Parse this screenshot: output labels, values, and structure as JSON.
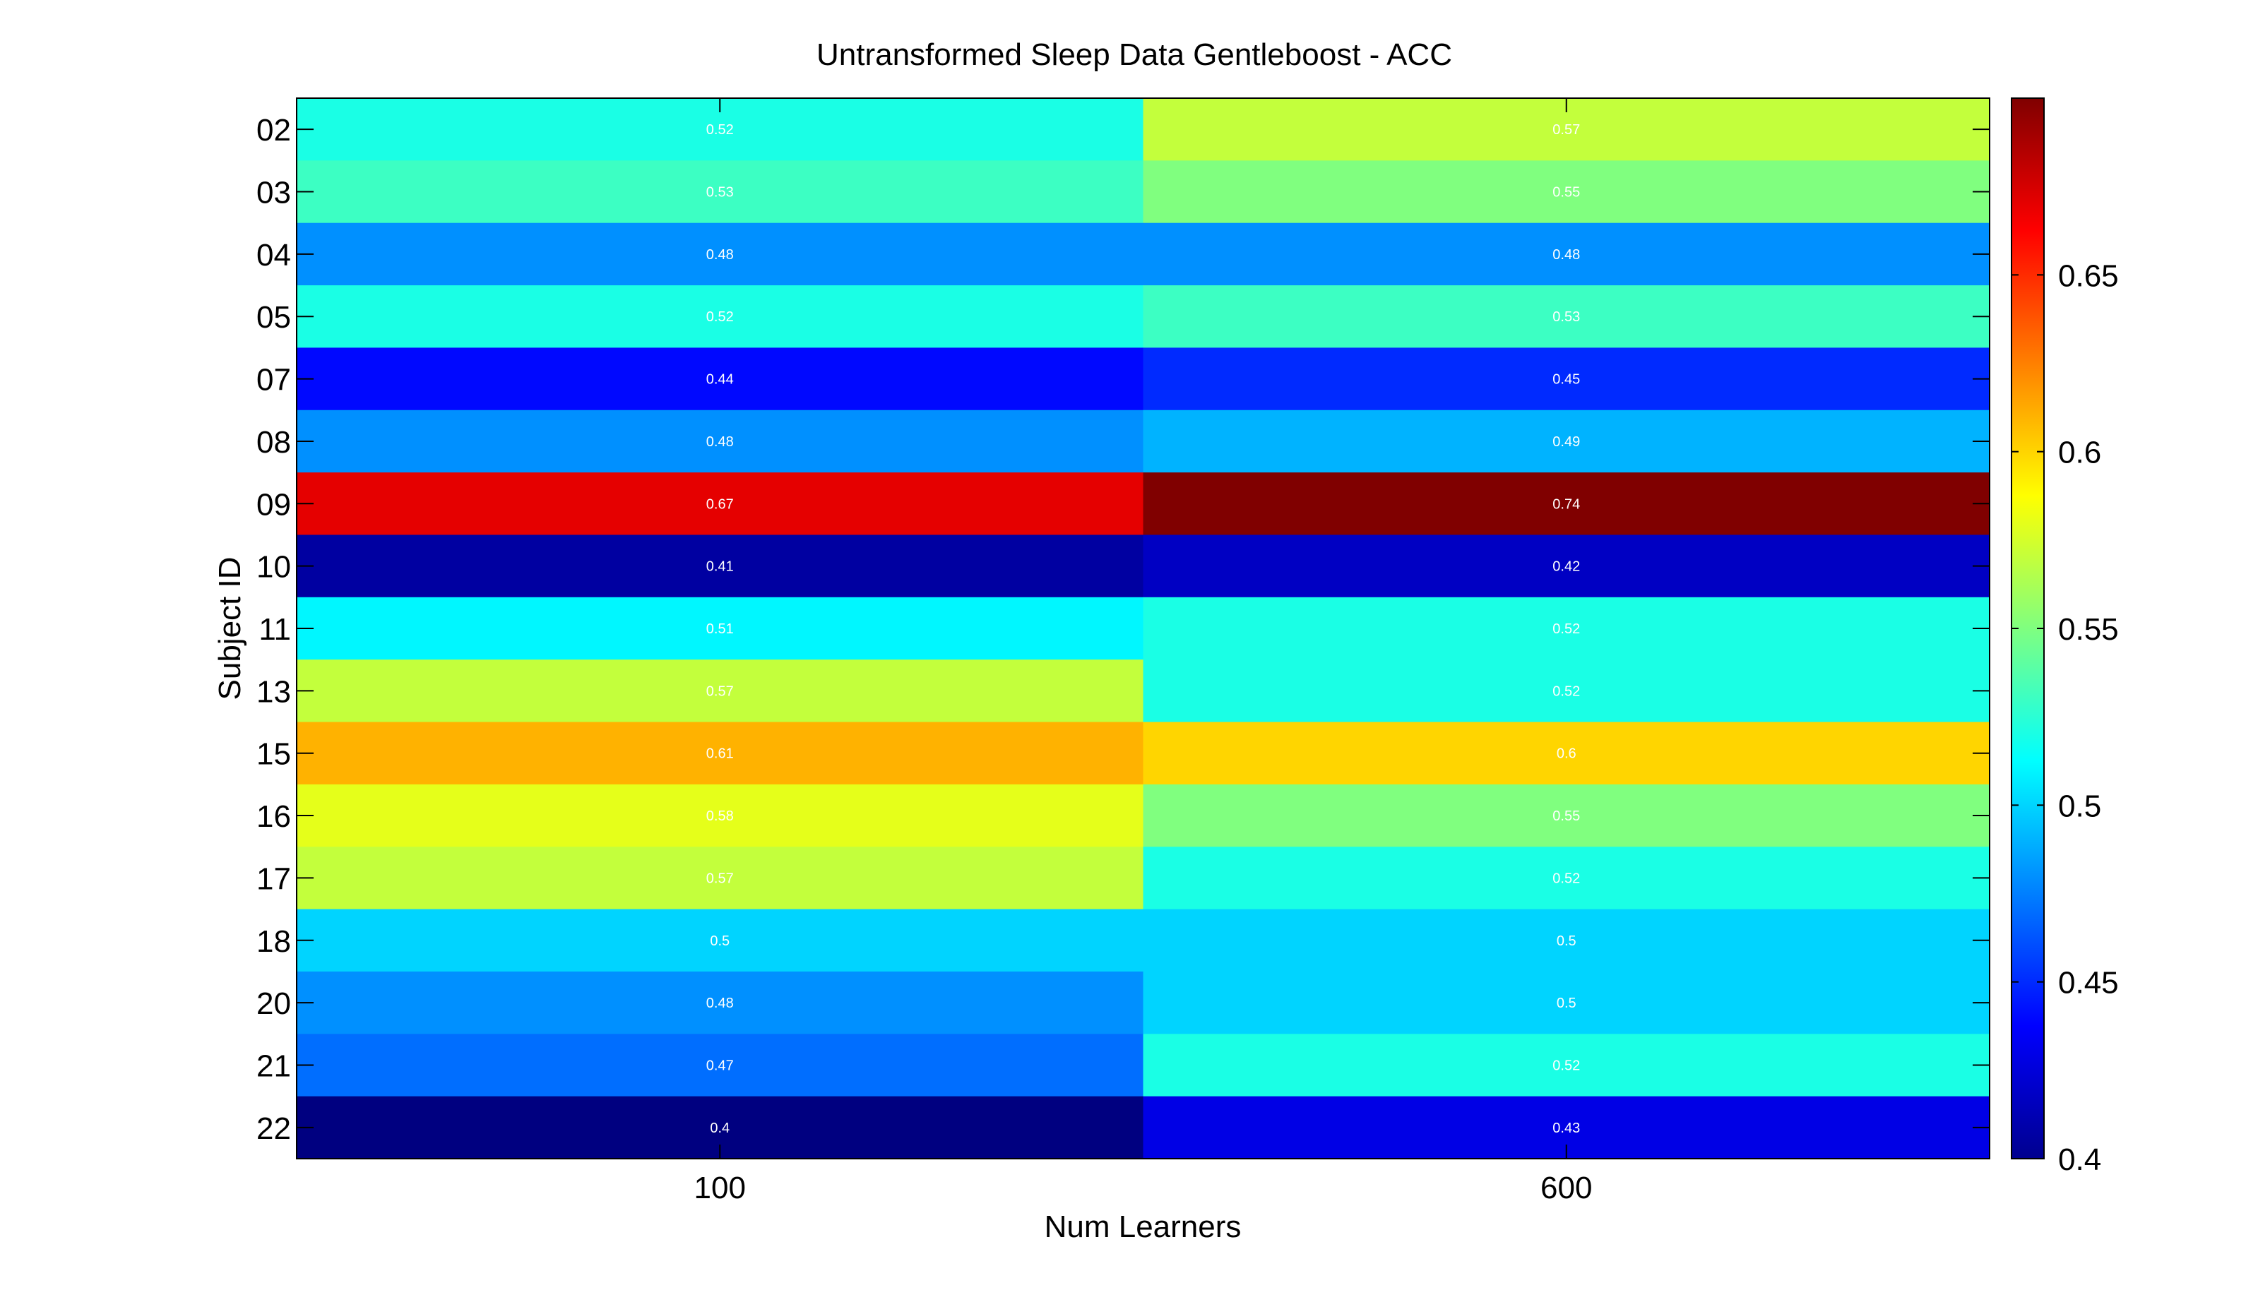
{
  "chart_data": {
    "type": "heatmap",
    "title": "Untransformed Sleep Data Gentleboost  - ACC",
    "xlabel": "Num Learners",
    "ylabel": "Subject ID",
    "x_categories": [
      "100",
      "600"
    ],
    "y_categories": [
      "02",
      "03",
      "04",
      "05",
      "07",
      "08",
      "09",
      "10",
      "11",
      "13",
      "15",
      "16",
      "17",
      "18",
      "20",
      "21",
      "22"
    ],
    "values": [
      [
        0.52,
        0.57
      ],
      [
        0.53,
        0.55
      ],
      [
        0.48,
        0.48
      ],
      [
        0.52,
        0.53
      ],
      [
        0.44,
        0.45
      ],
      [
        0.48,
        0.49
      ],
      [
        0.67,
        0.74
      ],
      [
        0.41,
        0.42
      ],
      [
        0.51,
        0.52
      ],
      [
        0.57,
        0.52
      ],
      [
        0.61,
        0.6
      ],
      [
        0.58,
        0.55
      ],
      [
        0.57,
        0.52
      ],
      [
        0.5,
        0.5
      ],
      [
        0.48,
        0.5
      ],
      [
        0.47,
        0.52
      ],
      [
        0.4,
        0.43
      ]
    ],
    "cell_labels": [
      [
        "0.52",
        "0.57"
      ],
      [
        "0.53",
        "0.55"
      ],
      [
        "0.48",
        "0.48"
      ],
      [
        "0.52",
        "0.53"
      ],
      [
        "0.44",
        "0.45"
      ],
      [
        "0.48",
        "0.49"
      ],
      [
        "0.67",
        "0.74"
      ],
      [
        "0.41",
        "0.42"
      ],
      [
        "0.51",
        "0.52"
      ],
      [
        "0.57",
        "0.52"
      ],
      [
        "0.61",
        "0.6"
      ],
      [
        "0.58",
        "0.55"
      ],
      [
        "0.57",
        "0.52"
      ],
      [
        "0.5",
        "0.5"
      ],
      [
        "0.48",
        "0.5"
      ],
      [
        "0.47",
        "0.52"
      ],
      [
        "0.4",
        "0.43"
      ]
    ],
    "colormap": "jet",
    "color_range": [
      0.4,
      0.7
    ],
    "colorbar_ticks": [
      0.4,
      0.45,
      0.5,
      0.55,
      0.6,
      0.65
    ],
    "colorbar_tick_labels": [
      "0.4",
      "0.45",
      "0.5",
      "0.55",
      "0.6",
      "0.65"
    ],
    "grid": false
  }
}
